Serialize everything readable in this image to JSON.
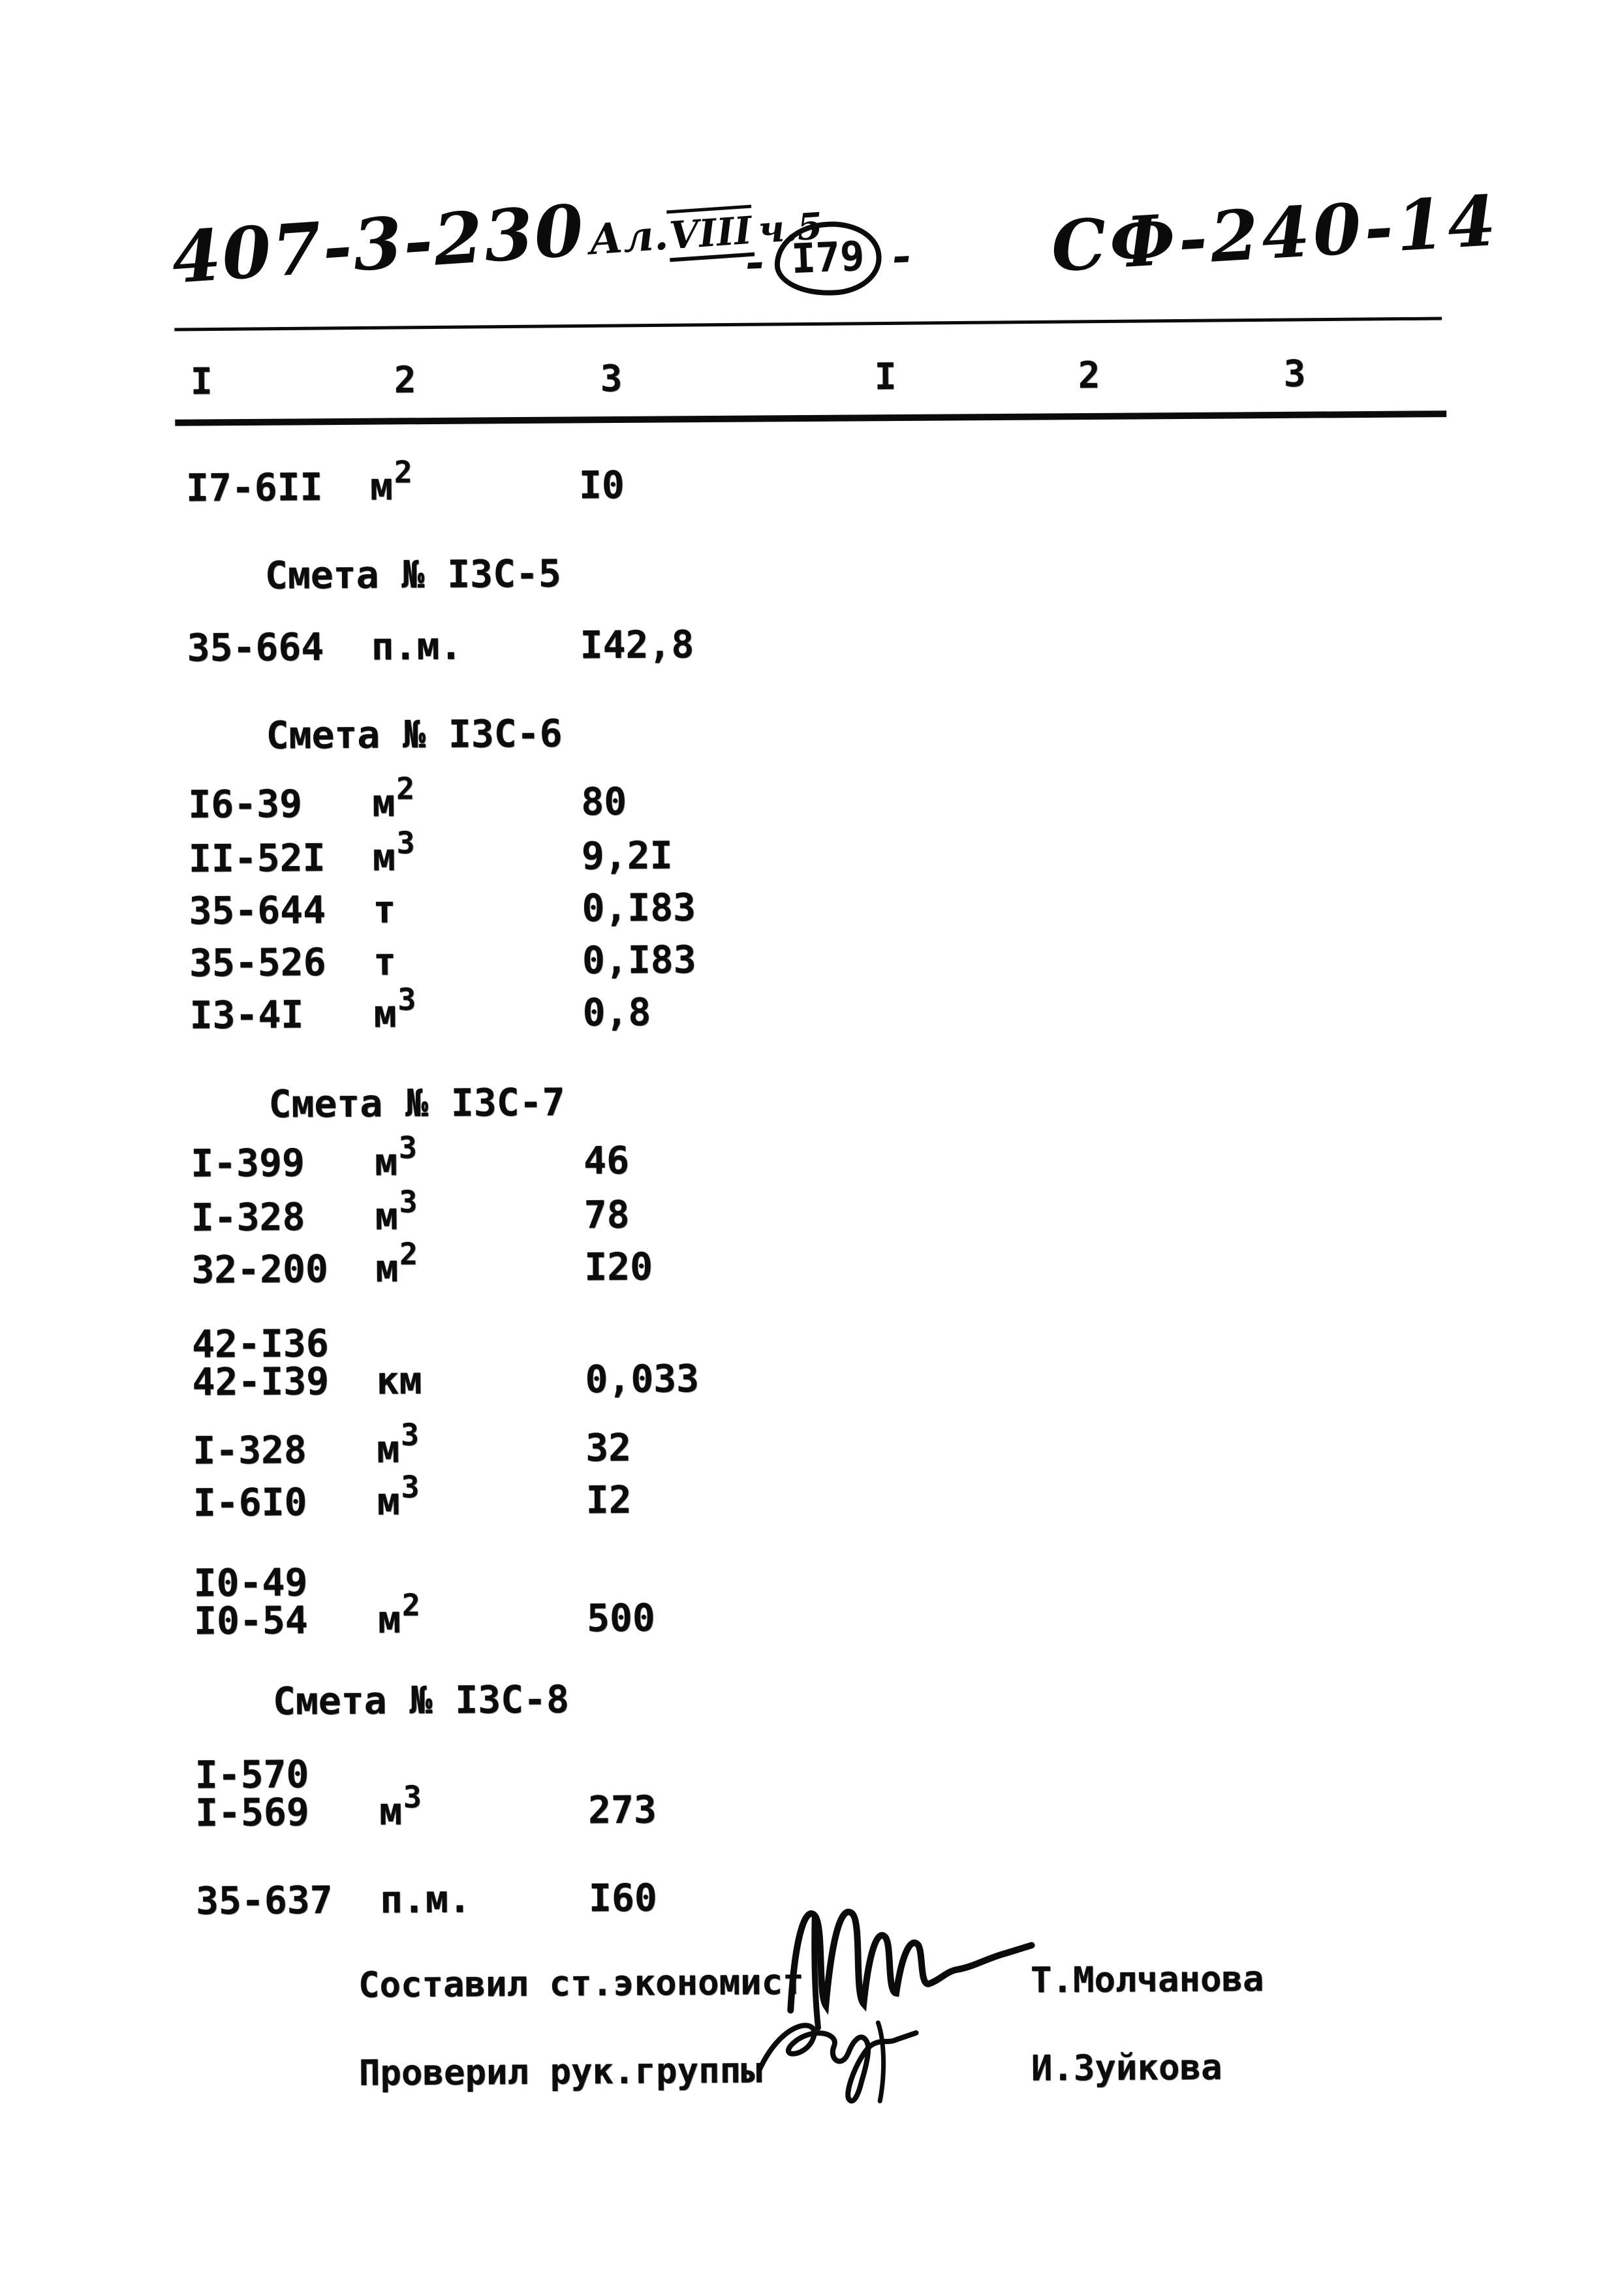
{
  "header": {
    "number": "407-3-230",
    "series": "Ал.",
    "volume": "VIII",
    "part": "ч.5",
    "page": "I79",
    "dash": "-",
    "code": "СФ-240-14"
  },
  "columns": [
    "I",
    "2",
    "3",
    "I",
    "2",
    "3"
  ],
  "rows": [
    {
      "type": "item",
      "codes": [
        "I7-6II"
      ],
      "unit": "м",
      "sup": "2",
      "value": "I0"
    },
    {
      "type": "section",
      "label": "Смета № I3С-5"
    },
    {
      "type": "item",
      "codes": [
        "35-664"
      ],
      "unit": "п.м.",
      "value": "I42,8"
    },
    {
      "type": "section",
      "label": "Смета № I3С-6"
    },
    {
      "type": "item",
      "codes": [
        "I6-39"
      ],
      "unit": "м",
      "sup": "2",
      "value": "80"
    },
    {
      "type": "item",
      "codes": [
        "II-52I"
      ],
      "unit": "м",
      "sup": "3",
      "value": "9,2I"
    },
    {
      "type": "item",
      "codes": [
        "35-644"
      ],
      "unit": "т",
      "value": "0,I83"
    },
    {
      "type": "item",
      "codes": [
        "35-526"
      ],
      "unit": "т",
      "value": "0,I83"
    },
    {
      "type": "item",
      "codes": [
        "I3-4I"
      ],
      "unit": "м",
      "sup": "3",
      "value": "0,8"
    },
    {
      "type": "section",
      "label": "Смета № I3С-7"
    },
    {
      "type": "item",
      "codes": [
        "I-399"
      ],
      "unit": "м",
      "sup": "3",
      "value": "46"
    },
    {
      "type": "item",
      "codes": [
        "I-328"
      ],
      "unit": "м",
      "sup": "3",
      "value": "78"
    },
    {
      "type": "item",
      "codes": [
        "32-200"
      ],
      "unit": "м",
      "sup": "2",
      "value": "I20"
    },
    {
      "type": "item",
      "codes": [
        "42-I36",
        "42-I39"
      ],
      "unit": "км",
      "value": "0,033"
    },
    {
      "type": "item",
      "codes": [
        "I-328"
      ],
      "unit": "м",
      "sup": "3",
      "value": "32"
    },
    {
      "type": "item",
      "codes": [
        "I-6I0"
      ],
      "unit": "м",
      "sup": "3",
      "value": "I2"
    },
    {
      "type": "item",
      "codes": [
        "I0-49",
        "I0-54"
      ],
      "unit": "м",
      "sup": "2",
      "value": "500"
    },
    {
      "type": "section",
      "label": "Смета № I3С-8"
    },
    {
      "type": "item",
      "codes": [
        "I-570",
        "I-569"
      ],
      "unit": "м",
      "sup": "3",
      "value": "273"
    },
    {
      "type": "item",
      "codes": [
        "35-637"
      ],
      "unit": "п.м.",
      "value": "I60"
    }
  ],
  "signatures": [
    {
      "role": "Составил ст.экономист",
      "name": "Т.Молчанова"
    },
    {
      "role": "Проверил рук.группы",
      "name": "И.Зуйкова"
    }
  ]
}
